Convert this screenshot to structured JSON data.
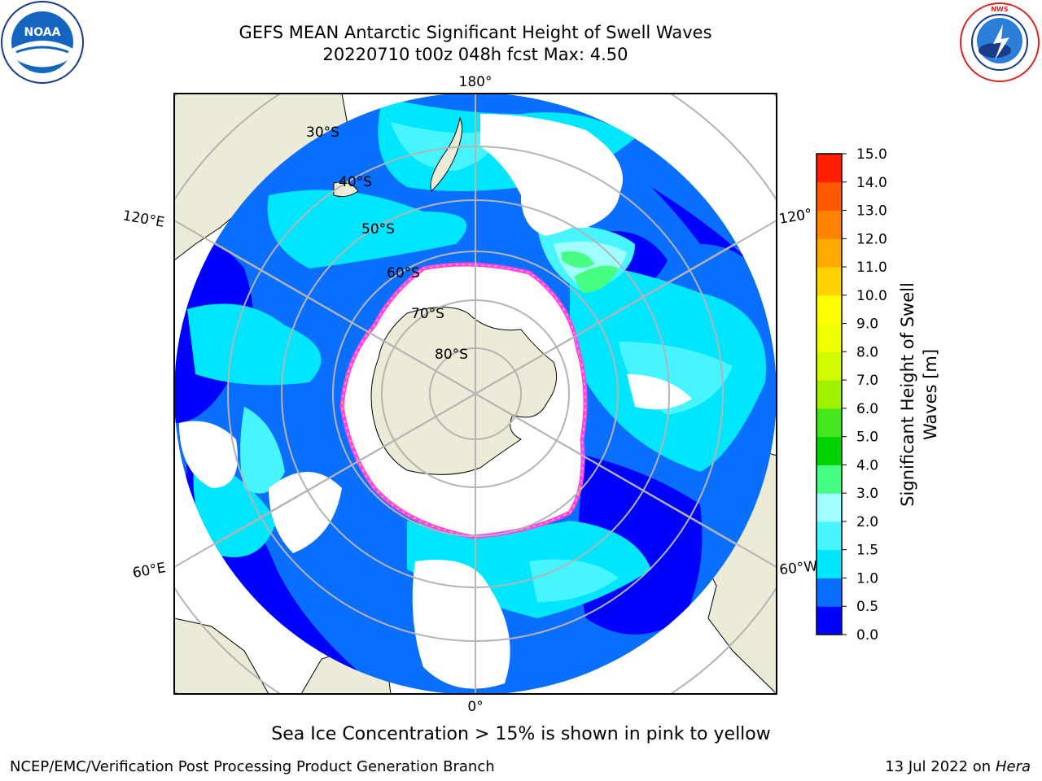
{
  "header": {
    "title_line1": "GEFS MEAN Antarctic Significant Height of Swell Waves",
    "title_line2": "20220710 t00z 048h fcst   Max: 4.50"
  },
  "logos": {
    "noaa": "NOAA",
    "noaa_ring_text": "NATIONAL OCEANIC AND ATMOSPHERIC ADMINISTRATION · U.S. DEPARTMENT OF COMMERCE",
    "nws_ring_text": "NATIONAL WEATHER SERVICE"
  },
  "map": {
    "projection": "south-polar-stereographic",
    "longitude_labels": {
      "top": "180°",
      "bottom": "0°",
      "upper_left": "120°E",
      "lower_left": "60°E",
      "upper_right": "120°",
      "lower_right": "60°W"
    },
    "latitude_labels": [
      "30°S",
      "40°S",
      "50°S",
      "60°S",
      "70°S",
      "80°S"
    ],
    "colors": {
      "land": "#ebebd7",
      "ocean_0_0.5": "#0000ff",
      "ocean_0.5_1.0": "#0a6eff",
      "ocean_1.0_1.5": "#00e6ff",
      "ocean_1.5_2.0": "#46f5ff",
      "ice_edge": "#ff40ff",
      "grid": "#b4b4b4"
    }
  },
  "colorbar": {
    "label": "Significant Height of Swell Waves [m]",
    "label_line1": "Significant Height of Swell",
    "label_line2": "Waves [m]",
    "ticks": [
      "15.0",
      "14.0",
      "13.0",
      "12.0",
      "11.0",
      "10.0",
      "9.0",
      "8.0",
      "7.0",
      "6.0",
      "5.0",
      "4.0",
      "3.0",
      "2.0",
      "1.5",
      "1.0",
      "0.5",
      "0.0"
    ],
    "levels": [
      0,
      0.5,
      1.0,
      1.5,
      2.0,
      3.0,
      4.0,
      5.0,
      6.0,
      7.0,
      8.0,
      9.0,
      10.0,
      11.0,
      12.0,
      13.0,
      14.0,
      15.0
    ],
    "colors": [
      "#0000ff",
      "#0a6eff",
      "#00e6ff",
      "#46f5ff",
      "#a0ffff",
      "#46ff82",
      "#00d200",
      "#46e61e",
      "#a0f000",
      "#d2fa00",
      "#f0ff00",
      "#ffff00",
      "#ffd200",
      "#ffaa00",
      "#ff8200",
      "#ff5a00",
      "#ff1e00"
    ]
  },
  "caption": "Sea Ice Concentration > 15% is shown in pink to yellow",
  "footer": {
    "left": "NCEP/EMC/Verification Post Processing Product Generation Branch",
    "right_prefix": "13 Jul 2022 on ",
    "right_host": "Hera"
  }
}
